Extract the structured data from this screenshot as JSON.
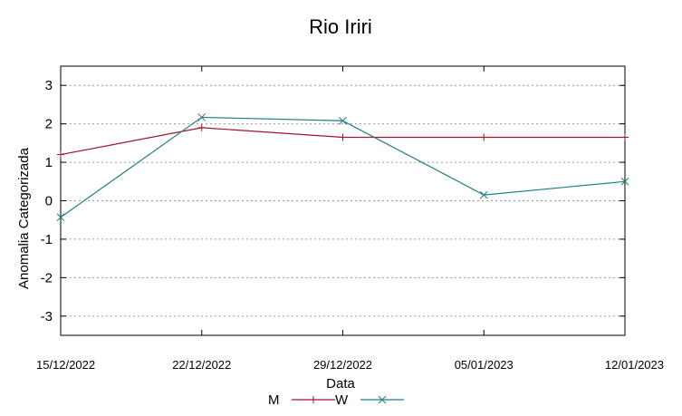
{
  "chart_data": {
    "type": "line",
    "title": "Rio Iriri",
    "xlabel": "Data",
    "ylabel": "Anomalia Categorizada",
    "categories": [
      "15/12/2022",
      "22/12/2022",
      "29/12/2022",
      "05/01/2023",
      "12/01/2023"
    ],
    "yticks": [
      -3,
      -2,
      -1,
      0,
      1,
      2,
      3
    ],
    "ylim": [
      -3.5,
      3.5
    ],
    "grid": "horizontal dotted",
    "legend_position": "bottom-center",
    "series": [
      {
        "name": "M",
        "values": [
          1.2,
          1.9,
          1.65,
          1.65,
          1.65
        ],
        "color": "#a0152b",
        "marker": "plus"
      },
      {
        "name": "W",
        "values": [
          -0.43,
          2.17,
          2.08,
          0.15,
          0.5
        ],
        "color": "#1f7f86",
        "marker": "cross"
      }
    ]
  }
}
